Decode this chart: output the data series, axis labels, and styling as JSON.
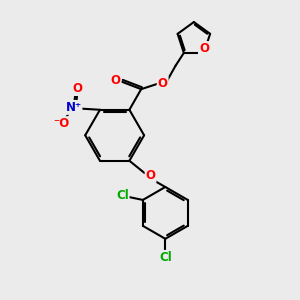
{
  "bg_color": "#ebebeb",
  "bond_color": "#000000",
  "bond_width": 1.5,
  "atom_colors": {
    "O": "#ff0000",
    "N": "#0000cd",
    "Cl": "#00aa00",
    "C": "#000000"
  },
  "font_size_atom": 8.5
}
